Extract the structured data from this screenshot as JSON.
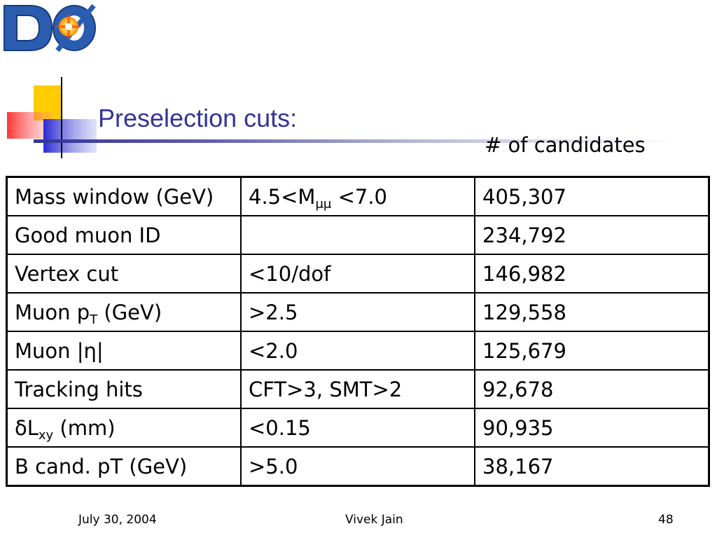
{
  "slide": {
    "logo_text": "DØ",
    "title": "Preselection cuts:",
    "column_caption": "# of candidates"
  },
  "table": {
    "rows": [
      {
        "cut": "Mass window (GeV)",
        "cut_sub": "",
        "cut_after": "",
        "value_pre": "4.5<M",
        "value_sub": "μμ",
        "value_post": " <7.0",
        "count": "405,307"
      },
      {
        "cut": "Good muon ID",
        "cut_sub": "",
        "cut_after": "",
        "value_pre": "",
        "value_sub": "",
        "value_post": "",
        "count": "234,792"
      },
      {
        "cut": "Vertex cut",
        "cut_sub": "",
        "cut_after": "",
        "value_pre": "<10/dof",
        "value_sub": "",
        "value_post": "",
        "count": "146,982"
      },
      {
        "cut": "Muon p",
        "cut_sub": "T",
        "cut_after": " (GeV)",
        "value_pre": ">2.5",
        "value_sub": "",
        "value_post": "",
        "count": "129,558"
      },
      {
        "cut": "Muon |η|",
        "cut_sub": "",
        "cut_after": "",
        "value_pre": "<2.0",
        "value_sub": "",
        "value_post": "",
        "count": "125,679"
      },
      {
        "cut": "Tracking hits",
        "cut_sub": "",
        "cut_after": "",
        "value_pre": "CFT>3, SMT>2",
        "value_sub": "",
        "value_post": "",
        "count": "92,678"
      },
      {
        "cut": "δL",
        "cut_sub": "xy",
        "cut_after": " (mm)",
        "value_pre": "<0.15",
        "value_sub": "",
        "value_post": "",
        "count": "90,935"
      },
      {
        "cut": "B cand. pT (GeV)",
        "cut_sub": "",
        "cut_after": "",
        "value_pre": ">5.0",
        "value_sub": "",
        "value_post": "",
        "count": "38,167"
      }
    ]
  },
  "footer": {
    "date": "July 30, 2004",
    "author": "Vivek Jain",
    "page": "48"
  },
  "colors": {
    "title": "#333399",
    "logo_blue": "#1f4f9f",
    "deco_yellow": "#ffcc00",
    "deco_red": "#ff3333",
    "deco_blue": "#3333cc"
  }
}
